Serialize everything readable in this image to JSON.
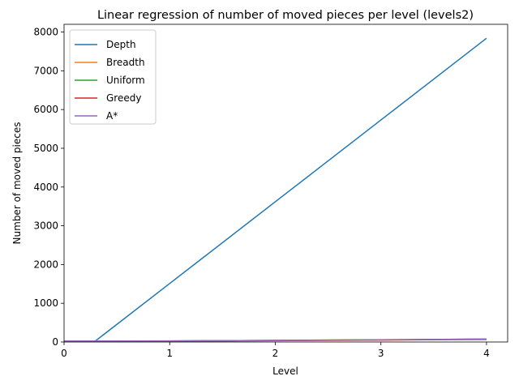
{
  "chart_data": {
    "type": "line",
    "title": "Linear regression of number of moved pieces per level (levels2)",
    "xlabel": "Level",
    "ylabel": "Number of moved pieces",
    "xlim": [
      0,
      4.2
    ],
    "ylim": [
      0,
      8200
    ],
    "xticks": [
      0,
      1,
      2,
      3,
      4
    ],
    "yticks": [
      0,
      1000,
      2000,
      3000,
      4000,
      5000,
      6000,
      7000,
      8000
    ],
    "grid": false,
    "legend_position": "top-left",
    "series": [
      {
        "name": "Depth",
        "color": "#1f77b4",
        "x": [
          0,
          1,
          2,
          3,
          4
        ],
        "y": [
          -600,
          1510,
          3620,
          5730,
          7840
        ]
      },
      {
        "name": "Breadth",
        "color": "#ff7f0e",
        "x": [
          0,
          1,
          2,
          3,
          4
        ],
        "y": [
          10,
          25,
          42,
          58,
          75
        ]
      },
      {
        "name": "Uniform",
        "color": "#2ca02c",
        "x": [
          0,
          1,
          2,
          3,
          4
        ],
        "y": [
          10,
          25,
          42,
          58,
          75
        ]
      },
      {
        "name": "Greedy",
        "color": "#d62728",
        "x": [
          0,
          1,
          2,
          3,
          4
        ],
        "y": [
          5,
          18,
          34,
          50,
          66
        ]
      },
      {
        "name": "A*",
        "color": "#9467bd",
        "x": [
          0,
          1,
          2,
          3,
          4
        ],
        "y": [
          25,
          30,
          40,
          55,
          75
        ]
      }
    ]
  }
}
